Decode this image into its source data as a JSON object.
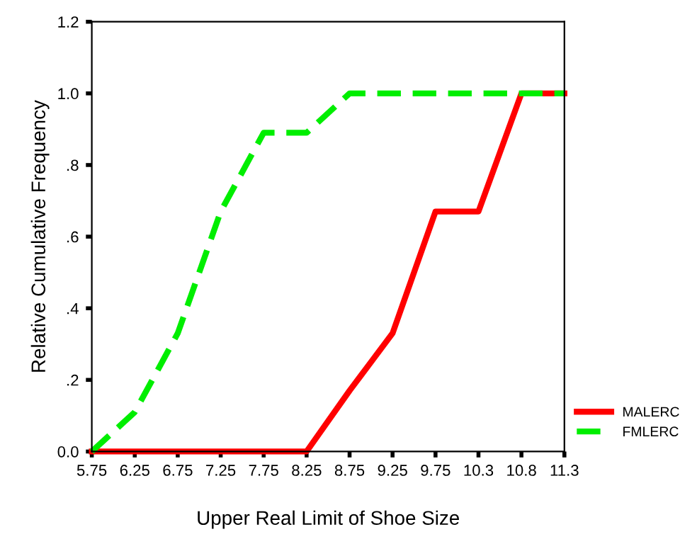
{
  "chart_data": {
    "type": "line",
    "xlabel": "Upper Real Limit of Shoe Size",
    "ylabel": "Relative Cumulative Frequency",
    "categories": [
      "5.75",
      "6.25",
      "6.75",
      "7.25",
      "7.75",
      "8.25",
      "8.75",
      "9.25",
      "9.75",
      "10.3",
      "10.8",
      "11.3"
    ],
    "series": [
      {
        "name": "MALERC",
        "color": "#ff0000",
        "line_style": "solid",
        "values": [
          0,
          0,
          0,
          0,
          0,
          0,
          0.17,
          0.33,
          0.67,
          0.67,
          1,
          1
        ]
      },
      {
        "name": "FMLERC",
        "color": "#00ee00",
        "line_style": "dashed",
        "values": [
          0,
          0.11,
          0.33,
          0.67,
          0.89,
          0.89,
          1,
          1,
          1,
          1,
          1,
          1
        ]
      }
    ],
    "ylim": [
      0,
      1.2
    ],
    "yticks": [
      {
        "value": 0,
        "label": "0.0"
      },
      {
        "value": 0.2,
        "label": ".2"
      },
      {
        "value": 0.4,
        "label": ".4"
      },
      {
        "value": 0.6,
        "label": ".6"
      },
      {
        "value": 0.8,
        "label": ".8"
      },
      {
        "value": 1.0,
        "label": "1.0"
      },
      {
        "value": 1.2,
        "label": "1.2"
      }
    ],
    "grid": false,
    "legend": "right",
    "marker": "none"
  }
}
